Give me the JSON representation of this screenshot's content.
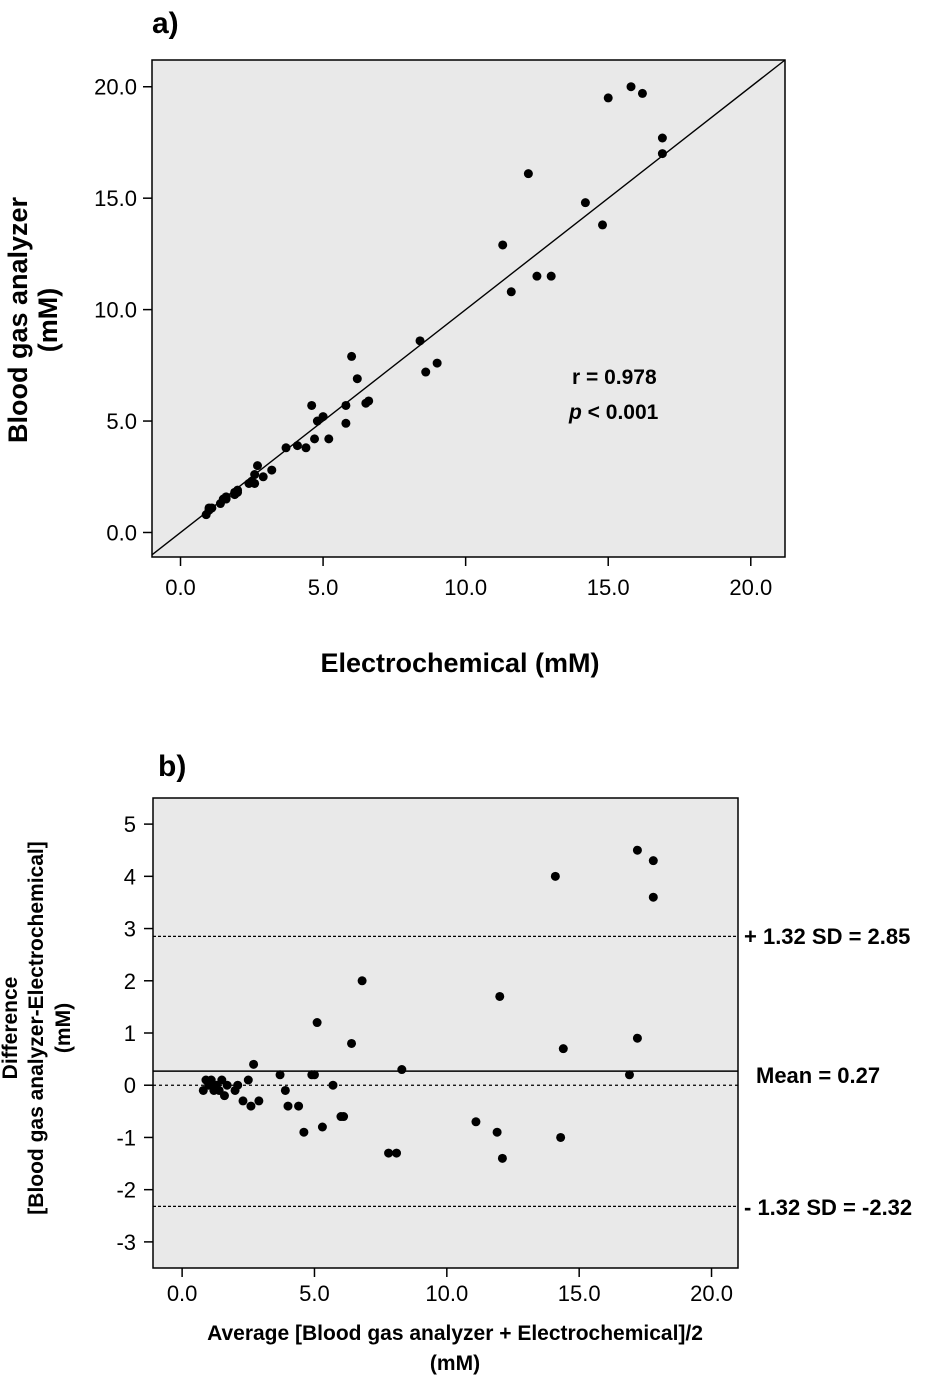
{
  "chart_data": [
    {
      "panel": "a)",
      "type": "scatter",
      "xlabel": "Electrochemical (mM)",
      "ylabel": "Blood gas analyzer",
      "ylabel_unit": "(mM)",
      "xlim": [
        -1.0,
        21.2
      ],
      "ylim": [
        -1.1,
        21.2
      ],
      "xticks": [
        "0.0",
        "5.0",
        "10.0",
        "15.0",
        "20.0"
      ],
      "yticks": [
        "0.0",
        "5.0",
        "10.0",
        "15.0",
        "20.0"
      ],
      "xtick_values": [
        0,
        5,
        10,
        15,
        20
      ],
      "ytick_values": [
        0,
        5,
        10,
        15,
        20
      ],
      "identity_line": true,
      "annotation_r": "r = 0.978",
      "annotation_p_symbol": "p",
      "annotation_p_rest": " < 0.001",
      "points": [
        [
          0.9,
          0.8
        ],
        [
          1.0,
          1.0
        ],
        [
          1.0,
          1.1
        ],
        [
          1.1,
          1.1
        ],
        [
          1.4,
          1.3
        ],
        [
          1.5,
          1.5
        ],
        [
          1.6,
          1.5
        ],
        [
          1.6,
          1.6
        ],
        [
          1.9,
          1.7
        ],
        [
          1.9,
          1.8
        ],
        [
          2.0,
          1.8
        ],
        [
          2.0,
          1.9
        ],
        [
          2.4,
          2.2
        ],
        [
          2.5,
          2.3
        ],
        [
          2.6,
          2.2
        ],
        [
          2.6,
          2.6
        ],
        [
          2.7,
          3.0
        ],
        [
          2.9,
          2.5
        ],
        [
          3.2,
          2.8
        ],
        [
          3.7,
          3.8
        ],
        [
          4.1,
          3.9
        ],
        [
          4.4,
          3.8
        ],
        [
          4.6,
          5.7
        ],
        [
          4.7,
          4.2
        ],
        [
          4.8,
          5.0
        ],
        [
          5.0,
          5.2
        ],
        [
          5.2,
          4.2
        ],
        [
          5.8,
          4.9
        ],
        [
          5.8,
          5.7
        ],
        [
          6.0,
          7.9
        ],
        [
          6.2,
          6.9
        ],
        [
          6.5,
          5.8
        ],
        [
          6.6,
          5.9
        ],
        [
          8.4,
          8.6
        ],
        [
          8.6,
          7.2
        ],
        [
          9.0,
          7.6
        ],
        [
          11.3,
          12.9
        ],
        [
          11.6,
          10.8
        ],
        [
          12.2,
          16.1
        ],
        [
          12.5,
          11.5
        ],
        [
          13.0,
          11.5
        ],
        [
          14.2,
          14.8
        ],
        [
          14.8,
          13.8
        ],
        [
          15.0,
          19.5
        ],
        [
          15.8,
          20.0
        ],
        [
          16.2,
          19.7
        ],
        [
          16.9,
          17.7
        ],
        [
          16.9,
          17.0
        ]
      ]
    },
    {
      "panel": "b)",
      "type": "scatter",
      "xlabel": "Average [Blood gas analyzer + Electrochemical]/2",
      "xlabel_unit": "(mM)",
      "ylabel_line1": "Difference",
      "ylabel_line2": "[Blood gas analyzer-Electrochemical]",
      "ylabel_line3": "(mM)",
      "xlim": [
        -1.1,
        21.0
      ],
      "ylim": [
        -3.5,
        5.5
      ],
      "xticks": [
        "0.0",
        "5.0",
        "10.0",
        "15.0",
        "20.0"
      ],
      "yticks": [
        "5",
        "4",
        "3",
        "2",
        "1",
        "0",
        "-1",
        "-2",
        "-3"
      ],
      "xtick_values": [
        0,
        5,
        10,
        15,
        20
      ],
      "ytick_values": [
        5,
        4,
        3,
        2,
        1,
        0,
        -1,
        -2,
        -3
      ],
      "mean": 0.27,
      "upper_limit": 2.85,
      "lower_limit": -2.32,
      "zero_line": 0,
      "label_upper": "+ 1.32 SD = 2.85",
      "label_mean": "Mean = 0.27",
      "label_lower": "- 1.32 SD = -2.32",
      "points": [
        [
          0.8,
          -0.1
        ],
        [
          0.9,
          0.1
        ],
        [
          1.0,
          0.0
        ],
        [
          1.1,
          0.1
        ],
        [
          1.2,
          -0.1
        ],
        [
          1.3,
          0.0
        ],
        [
          1.4,
          -0.1
        ],
        [
          1.5,
          0.1
        ],
        [
          1.6,
          -0.2
        ],
        [
          1.7,
          0.0
        ],
        [
          2.0,
          -0.1
        ],
        [
          2.1,
          0.0
        ],
        [
          2.3,
          -0.3
        ],
        [
          2.5,
          0.1
        ],
        [
          2.6,
          -0.4
        ],
        [
          2.7,
          0.4
        ],
        [
          2.9,
          -0.3
        ],
        [
          3.7,
          0.2
        ],
        [
          3.9,
          -0.1
        ],
        [
          4.0,
          -0.4
        ],
        [
          4.4,
          -0.4
        ],
        [
          4.6,
          -0.9
        ],
        [
          4.9,
          0.2
        ],
        [
          5.0,
          0.2
        ],
        [
          5.1,
          1.2
        ],
        [
          5.3,
          -0.8
        ],
        [
          5.7,
          0.0
        ],
        [
          6.0,
          -0.6
        ],
        [
          6.1,
          -0.6
        ],
        [
          6.4,
          0.8
        ],
        [
          6.8,
          2.0
        ],
        [
          7.8,
          -1.3
        ],
        [
          8.1,
          -1.3
        ],
        [
          8.3,
          0.3
        ],
        [
          11.1,
          -0.7
        ],
        [
          11.9,
          -0.9
        ],
        [
          12.0,
          1.7
        ],
        [
          12.1,
          -1.4
        ],
        [
          14.1,
          4.0
        ],
        [
          14.3,
          -1.0
        ],
        [
          14.4,
          0.7
        ],
        [
          16.9,
          0.2
        ],
        [
          17.2,
          0.9
        ],
        [
          17.2,
          4.5
        ],
        [
          17.8,
          4.3
        ],
        [
          17.8,
          3.6
        ]
      ]
    }
  ]
}
